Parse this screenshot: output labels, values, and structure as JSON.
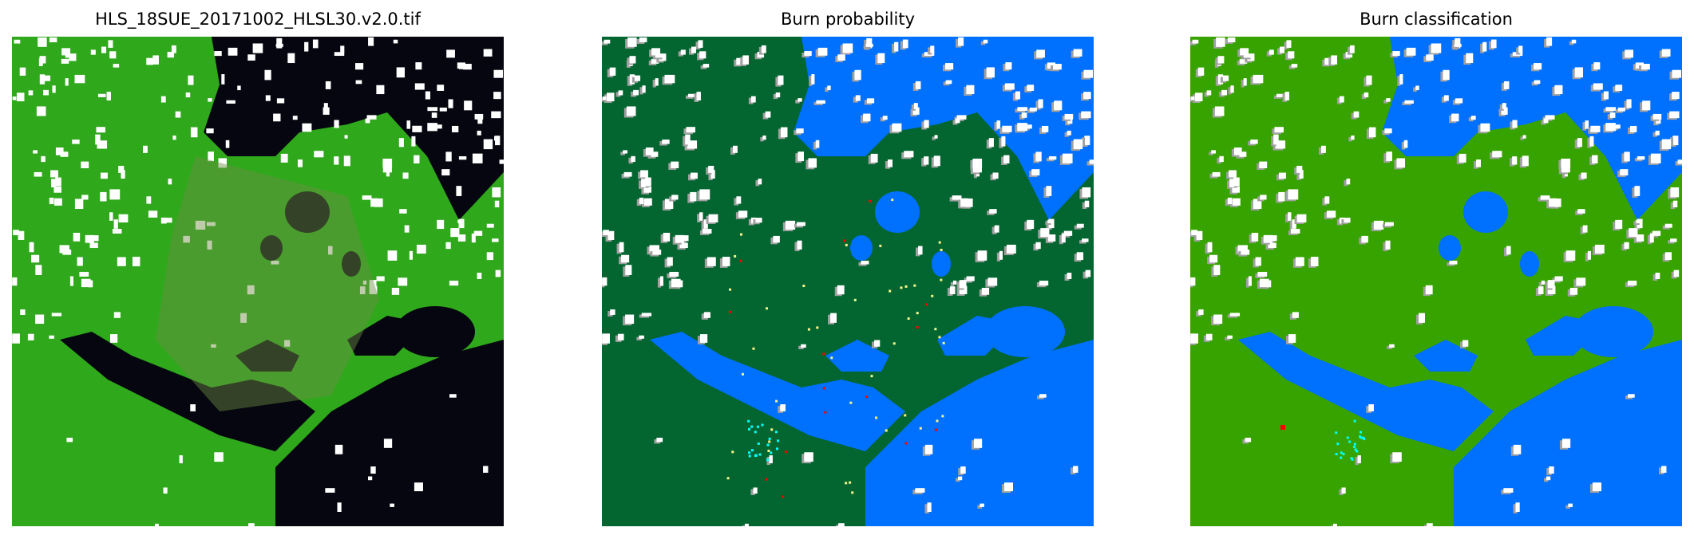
{
  "panels": [
    {
      "title": "HLS_18SUE_20171002_HLSL30.v2.0.tif",
      "kind": "rgb-satellite-image"
    },
    {
      "title": "Burn probability",
      "kind": "probability-map"
    },
    {
      "title": "Burn classification",
      "kind": "classification-map"
    }
  ],
  "colors": {
    "rgb_land": "#2fa81c",
    "rgb_water": "#05060f",
    "rgb_cloud": "#ffffff",
    "prob_land": "#036630",
    "class_land": "#37a300",
    "water": "#0070ff",
    "cloud": "#ffffff",
    "cloud_shadow": "#a0a0a0",
    "burn": "#ff0000",
    "low_burn": "#f5f58a",
    "cyan": "#00ffff"
  }
}
